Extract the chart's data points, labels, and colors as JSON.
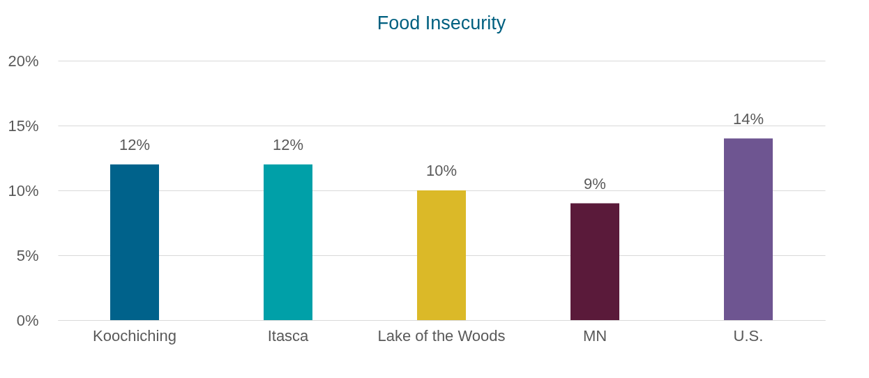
{
  "chart_data": {
    "type": "bar",
    "title": "Food Insecurity",
    "categories": [
      "Koochiching",
      "Itasca",
      "Lake of the Woods",
      "MN",
      "U.S."
    ],
    "values": [
      12,
      12,
      10,
      9,
      14
    ],
    "colors": [
      "#00628b",
      "#00a0a8",
      "#dbb928",
      "#5a1a3a",
      "#6e5591"
    ],
    "value_labels": [
      "12%",
      "12%",
      "10%",
      "9%",
      "14%"
    ],
    "ylim": [
      0,
      20
    ],
    "yticks": [
      {
        "value": 0,
        "label": "0%"
      },
      {
        "value": 5,
        "label": "5%"
      },
      {
        "value": 10,
        "label": "10%"
      },
      {
        "value": 15,
        "label": "15%"
      },
      {
        "value": 20,
        "label": "20%"
      }
    ],
    "grid": "y"
  }
}
